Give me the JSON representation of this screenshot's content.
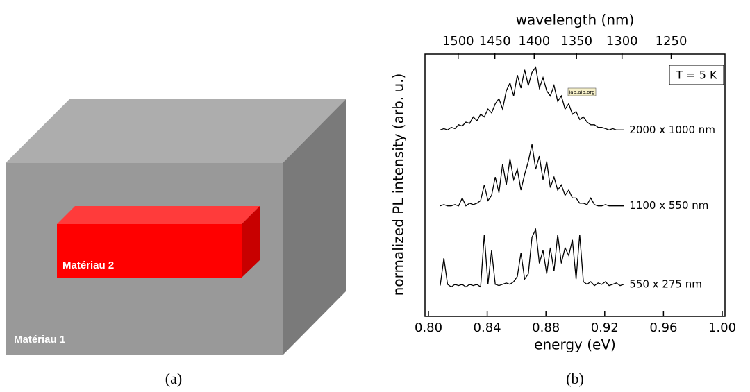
{
  "diagram": {
    "labels": [
      "Matériau 1",
      "Matériau 2"
    ]
  },
  "captions": [
    "(a)",
    "(b)"
  ],
  "chart_data": {
    "type": "line",
    "xlabel": "energy (eV)",
    "ylabel": "normalized PL intensity (arb. u.)",
    "x2label": "wavelength (nm)",
    "xlim": [
      0.8,
      1.0
    ],
    "xticks": [
      {
        "value": 0.8,
        "label": "0.80"
      },
      {
        "value": 0.84,
        "label": "0.84"
      },
      {
        "value": 0.88,
        "label": "0.88"
      },
      {
        "value": 0.92,
        "label": "0.92"
      },
      {
        "value": 0.96,
        "label": "0.96"
      },
      {
        "value": 1.0,
        "label": "1.00"
      }
    ],
    "x2lim": [
      1543,
      1202
    ],
    "x2scale": "reciprocal",
    "x2ticks": [
      1500,
      1450,
      1400,
      1350,
      1300,
      1250
    ],
    "ylim": [
      0,
      10
    ],
    "annotation": "T = 5 K",
    "watermark": "jap.aip.org",
    "x": [
      0.808,
      0.8105,
      0.813,
      0.8155,
      0.818,
      0.8205,
      0.823,
      0.8255,
      0.828,
      0.8305,
      0.833,
      0.8355,
      0.838,
      0.8405,
      0.843,
      0.8455,
      0.848,
      0.8505,
      0.853,
      0.8555,
      0.858,
      0.8605,
      0.863,
      0.8655,
      0.868,
      0.8705,
      0.873,
      0.8755,
      0.878,
      0.8805,
      0.883,
      0.8855,
      0.888,
      0.8905,
      0.893,
      0.8955,
      0.898,
      0.9005,
      0.903,
      0.9055,
      0.908,
      0.9105,
      0.913,
      0.9155,
      0.918,
      0.9205,
      0.923,
      0.9255,
      0.928,
      0.9305,
      0.933
    ],
    "series": [
      {
        "name": "2000 x 1000 nm",
        "color": "#000000",
        "values": [
          7.1,
          7.15,
          7.1,
          7.2,
          7.15,
          7.3,
          7.25,
          7.4,
          7.35,
          7.6,
          7.45,
          7.7,
          7.6,
          7.9,
          7.75,
          8.1,
          8.3,
          7.9,
          8.6,
          8.9,
          8.4,
          9.2,
          8.7,
          9.4,
          8.8,
          9.3,
          9.5,
          8.7,
          9.1,
          8.6,
          8.4,
          8.8,
          8.2,
          8.4,
          7.9,
          8.1,
          7.7,
          7.8,
          7.5,
          7.6,
          7.4,
          7.3,
          7.3,
          7.2,
          7.2,
          7.15,
          7.1,
          7.15,
          7.1,
          7.1,
          7.1
        ]
      },
      {
        "name": "1100 x 550 nm",
        "color": "#000000",
        "values": [
          4.2,
          4.25,
          4.2,
          4.2,
          4.25,
          4.2,
          4.5,
          4.2,
          4.3,
          4.25,
          4.3,
          4.4,
          5.0,
          4.4,
          4.6,
          5.3,
          4.7,
          5.8,
          5.0,
          6.0,
          5.2,
          5.6,
          4.8,
          5.4,
          5.9,
          6.55,
          5.6,
          6.1,
          5.2,
          5.9,
          4.9,
          5.3,
          4.8,
          5.0,
          4.6,
          4.8,
          4.5,
          4.5,
          4.3,
          4.3,
          4.25,
          4.5,
          4.25,
          4.2,
          4.2,
          4.25,
          4.2,
          4.2,
          4.2,
          4.2,
          4.2
        ]
      },
      {
        "name": "550 x 275 nm",
        "color": "#000000",
        "values": [
          1.15,
          2.2,
          1.2,
          1.1,
          1.2,
          1.15,
          1.2,
          1.1,
          1.2,
          1.15,
          1.2,
          1.1,
          3.1,
          1.2,
          2.5,
          1.2,
          1.15,
          1.2,
          1.25,
          1.2,
          1.3,
          1.5,
          2.4,
          1.4,
          1.6,
          3.0,
          3.3,
          2.0,
          2.5,
          1.6,
          2.6,
          1.7,
          3.1,
          2.0,
          2.6,
          2.3,
          2.9,
          1.4,
          3.1,
          1.3,
          1.2,
          1.3,
          1.15,
          1.25,
          1.2,
          1.3,
          1.15,
          1.2,
          1.25,
          1.15,
          1.2
        ]
      }
    ]
  }
}
